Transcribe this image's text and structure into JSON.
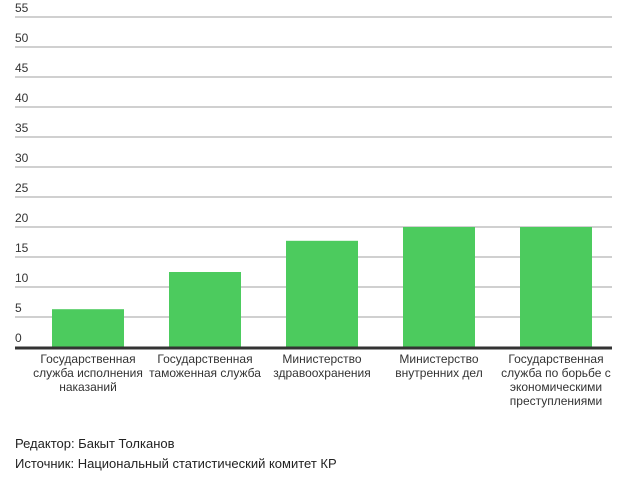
{
  "chart_data": {
    "type": "bar",
    "categories": [
      "Государственная служба исполнения наказаний",
      "Государственная таможенная служба",
      "Министерство здравоохранения",
      "Министерство внутренних дел",
      "Государственная служба по борьбе с экономическими преступлениями"
    ],
    "values": [
      6.3,
      12.5,
      17.7,
      20,
      20
    ],
    "ylim": [
      0,
      55
    ],
    "yticks": [
      0,
      5,
      10,
      15,
      20,
      25,
      30,
      35,
      40,
      45,
      50,
      55
    ],
    "grid": true,
    "bar_color": "#4ccb5e",
    "title": "",
    "xlabel": "",
    "ylabel": ""
  },
  "footer": {
    "editor": "Редактор: Бакыт Толканов",
    "source": "Источник: Национальный статистический комитет КР"
  }
}
